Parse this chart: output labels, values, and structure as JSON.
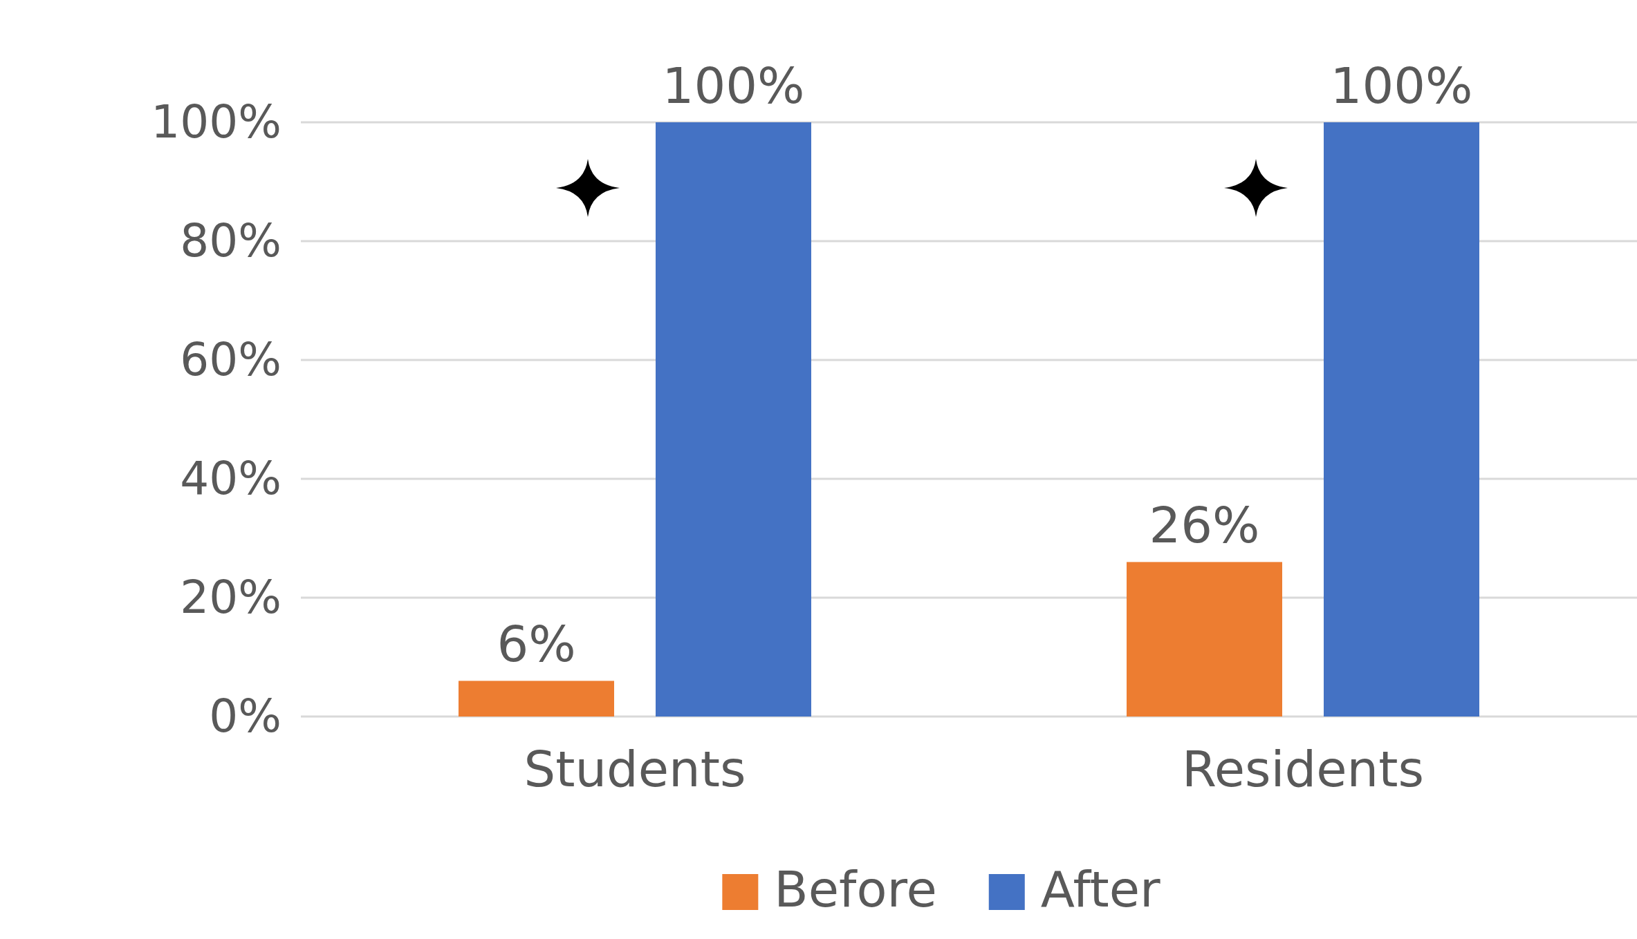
{
  "chart_data": {
    "type": "bar",
    "categories": [
      "Students",
      "Residents"
    ],
    "series": [
      {
        "name": "Before",
        "color": "#ed7d31",
        "values": [
          6,
          26
        ]
      },
      {
        "name": "After",
        "color": "#4472c4",
        "values": [
          100,
          100
        ]
      }
    ],
    "ylim": [
      0,
      100
    ],
    "yticks": [
      {
        "value": 0,
        "label": "0%"
      },
      {
        "value": 20,
        "label": "20%"
      },
      {
        "value": 40,
        "label": "40%"
      },
      {
        "value": 60,
        "label": "60%"
      },
      {
        "value": 80,
        "label": "80%"
      },
      {
        "value": 100,
        "label": "100%"
      }
    ],
    "value_labels": [
      [
        "6%",
        "26%"
      ],
      [
        "100%",
        "100%"
      ]
    ],
    "grid": "y",
    "legend": "bottom"
  }
}
